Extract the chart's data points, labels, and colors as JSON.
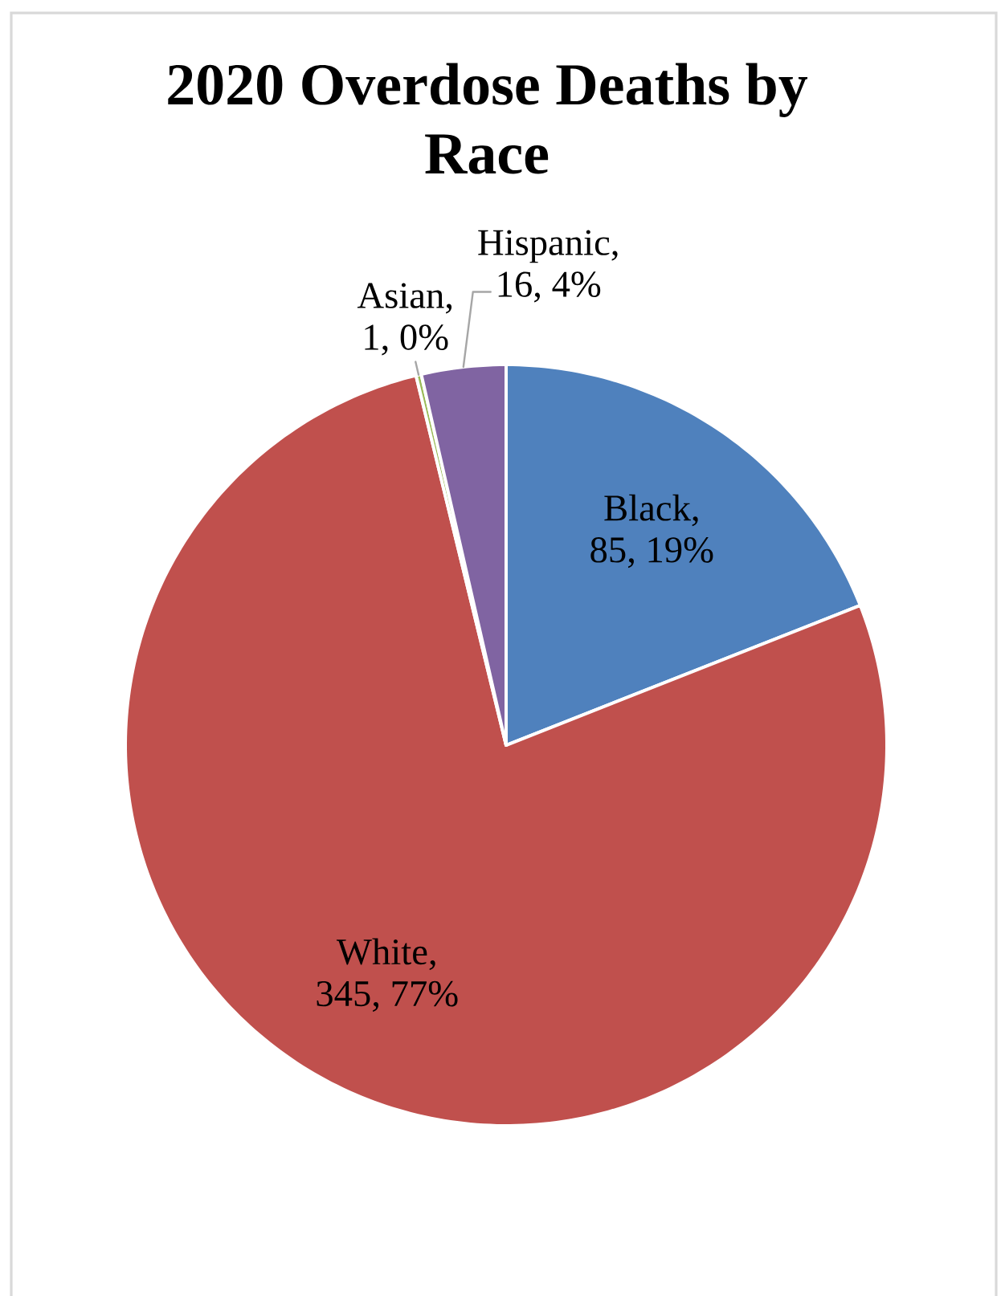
{
  "chart_data": {
    "type": "pie",
    "title": "2020 Overdose Deaths by Race",
    "categories": [
      "Black",
      "White",
      "Asian",
      "Hispanic"
    ],
    "values": [
      85,
      345,
      1,
      16
    ],
    "colors": [
      "#4f81bd",
      "#c0504d",
      "#9bbb59",
      "#8064a2"
    ],
    "value_labels": [
      ", 85, 19%",
      ", 345, 77%",
      ", 1, 0%",
      ", 16, 4%"
    ]
  }
}
